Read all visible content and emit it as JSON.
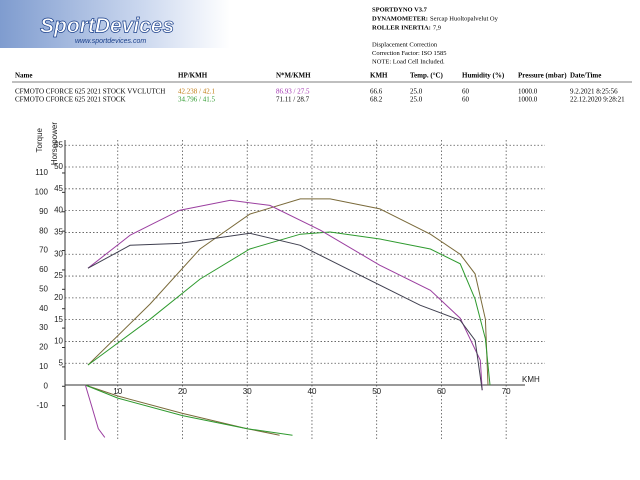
{
  "header": {
    "logo": "SportDevices",
    "logo_url": "www.sportdevices.com",
    "title": "SPORTDYNO V3.7",
    "info": [
      {
        "label": "DYNAMOMETER:",
        "value": "Sercap Huoltopalvelut Oy"
      },
      {
        "label": "ROLLER INERTIA:",
        "value": "7,9"
      }
    ],
    "notes": [
      "Displacement Correction",
      "Correction Factor: ISO 1585",
      "NOTE: Load Cell Included."
    ]
  },
  "table": {
    "columns": [
      "Name",
      "HP/KMH",
      "N*M/KMH",
      "KMH",
      "Temp. (°C)",
      "Humidity (%)",
      "Pressure (mbar)",
      "Date/Time"
    ],
    "rows": [
      [
        "CFMOTO CFORCE 625 2021 STOCK VVCLUTCH",
        "42.238 / 42.1",
        "86.93 / 27.5",
        "66.6",
        "25.0",
        "60",
        "1000.0",
        "9.2.2021 8:25:56"
      ],
      [
        "CFMOTO CFORCE 625 2021 STOCK",
        "34.796 / 41.5",
        "71.11 / 28.7",
        "68.2",
        "25.0",
        "60",
        "1000.0",
        "22.12.2020 9:28:21"
      ]
    ]
  },
  "chart_data": {
    "type": "line",
    "y_label": "Torque",
    "y2_label": "Horsepower",
    "x_label": "KMH",
    "xlim": [
      1.85,
      76
    ],
    "xticks": [
      10,
      20,
      30,
      40,
      50,
      60,
      70
    ],
    "ylim": [
      -27.7,
      127
    ],
    "yticks": [
      -10,
      0,
      10,
      20,
      30,
      40,
      50,
      60,
      70,
      80,
      90,
      100,
      110
    ],
    "y2lim": [
      -12.6,
      56.2
    ],
    "y2ticks": [
      5,
      10,
      15,
      20,
      25,
      30,
      35,
      40,
      45,
      50,
      55
    ],
    "grid": true,
    "series": [
      {
        "color": "#7a6a3a",
        "axis": "y2",
        "x": [
          5.4,
          15,
          22.7,
          30.4,
          38.2,
          42.8,
          50.5,
          58.3,
          62.9,
          65.2,
          66.8,
          67.2
        ],
        "values": [
          4.6,
          18.6,
          31.2,
          39.2,
          42.7,
          42.7,
          40.4,
          34.6,
          30,
          25.5,
          15.1,
          0
        ]
      },
      {
        "color": "#2e9a2e",
        "axis": "y2",
        "x": [
          5.4,
          15,
          22.7,
          30.4,
          38.2,
          42.8,
          50.5,
          58.3,
          62.9,
          65.2,
          66.8,
          67.5
        ],
        "values": [
          4.6,
          15.1,
          24.3,
          31.2,
          34.6,
          35.1,
          33.5,
          31.2,
          27.8,
          19.7,
          10.6,
          0
        ]
      },
      {
        "color": "#9b3fa0",
        "x": [
          5.4,
          11.9,
          19.6,
          27.4,
          33.5,
          41.3,
          50.5,
          58.3,
          62.9,
          66,
          66.3
        ],
        "values": [
          60.9,
          77.9,
          90.8,
          95.9,
          93.3,
          80.5,
          62.4,
          49.5,
          35.1,
          13.4,
          -2
        ]
      },
      {
        "color": "#404050",
        "x": [
          5.4,
          11.9,
          19.6,
          30.4,
          38.2,
          45.9,
          56.7,
          62.9,
          65.2,
          66.3
        ],
        "values": [
          60.9,
          72.7,
          73.7,
          78.9,
          72.7,
          59.8,
          41.8,
          34,
          23.7,
          -2
        ]
      },
      {
        "color": "#7a6a3a",
        "axis": "y2",
        "x": [
          5,
          10,
          20,
          30,
          35
        ],
        "values": [
          0,
          -2.5,
          -6.5,
          -10,
          -11.5
        ]
      },
      {
        "color": "#2e9a2e",
        "axis": "y2",
        "x": [
          5,
          10,
          20,
          30,
          37
        ],
        "values": [
          0,
          -3,
          -7,
          -10,
          -11.5
        ]
      },
      {
        "color": "#9b3fa0",
        "axis": "y2",
        "x": [
          5,
          6,
          7,
          8
        ],
        "values": [
          0,
          -5,
          -10,
          -12
        ]
      }
    ]
  }
}
